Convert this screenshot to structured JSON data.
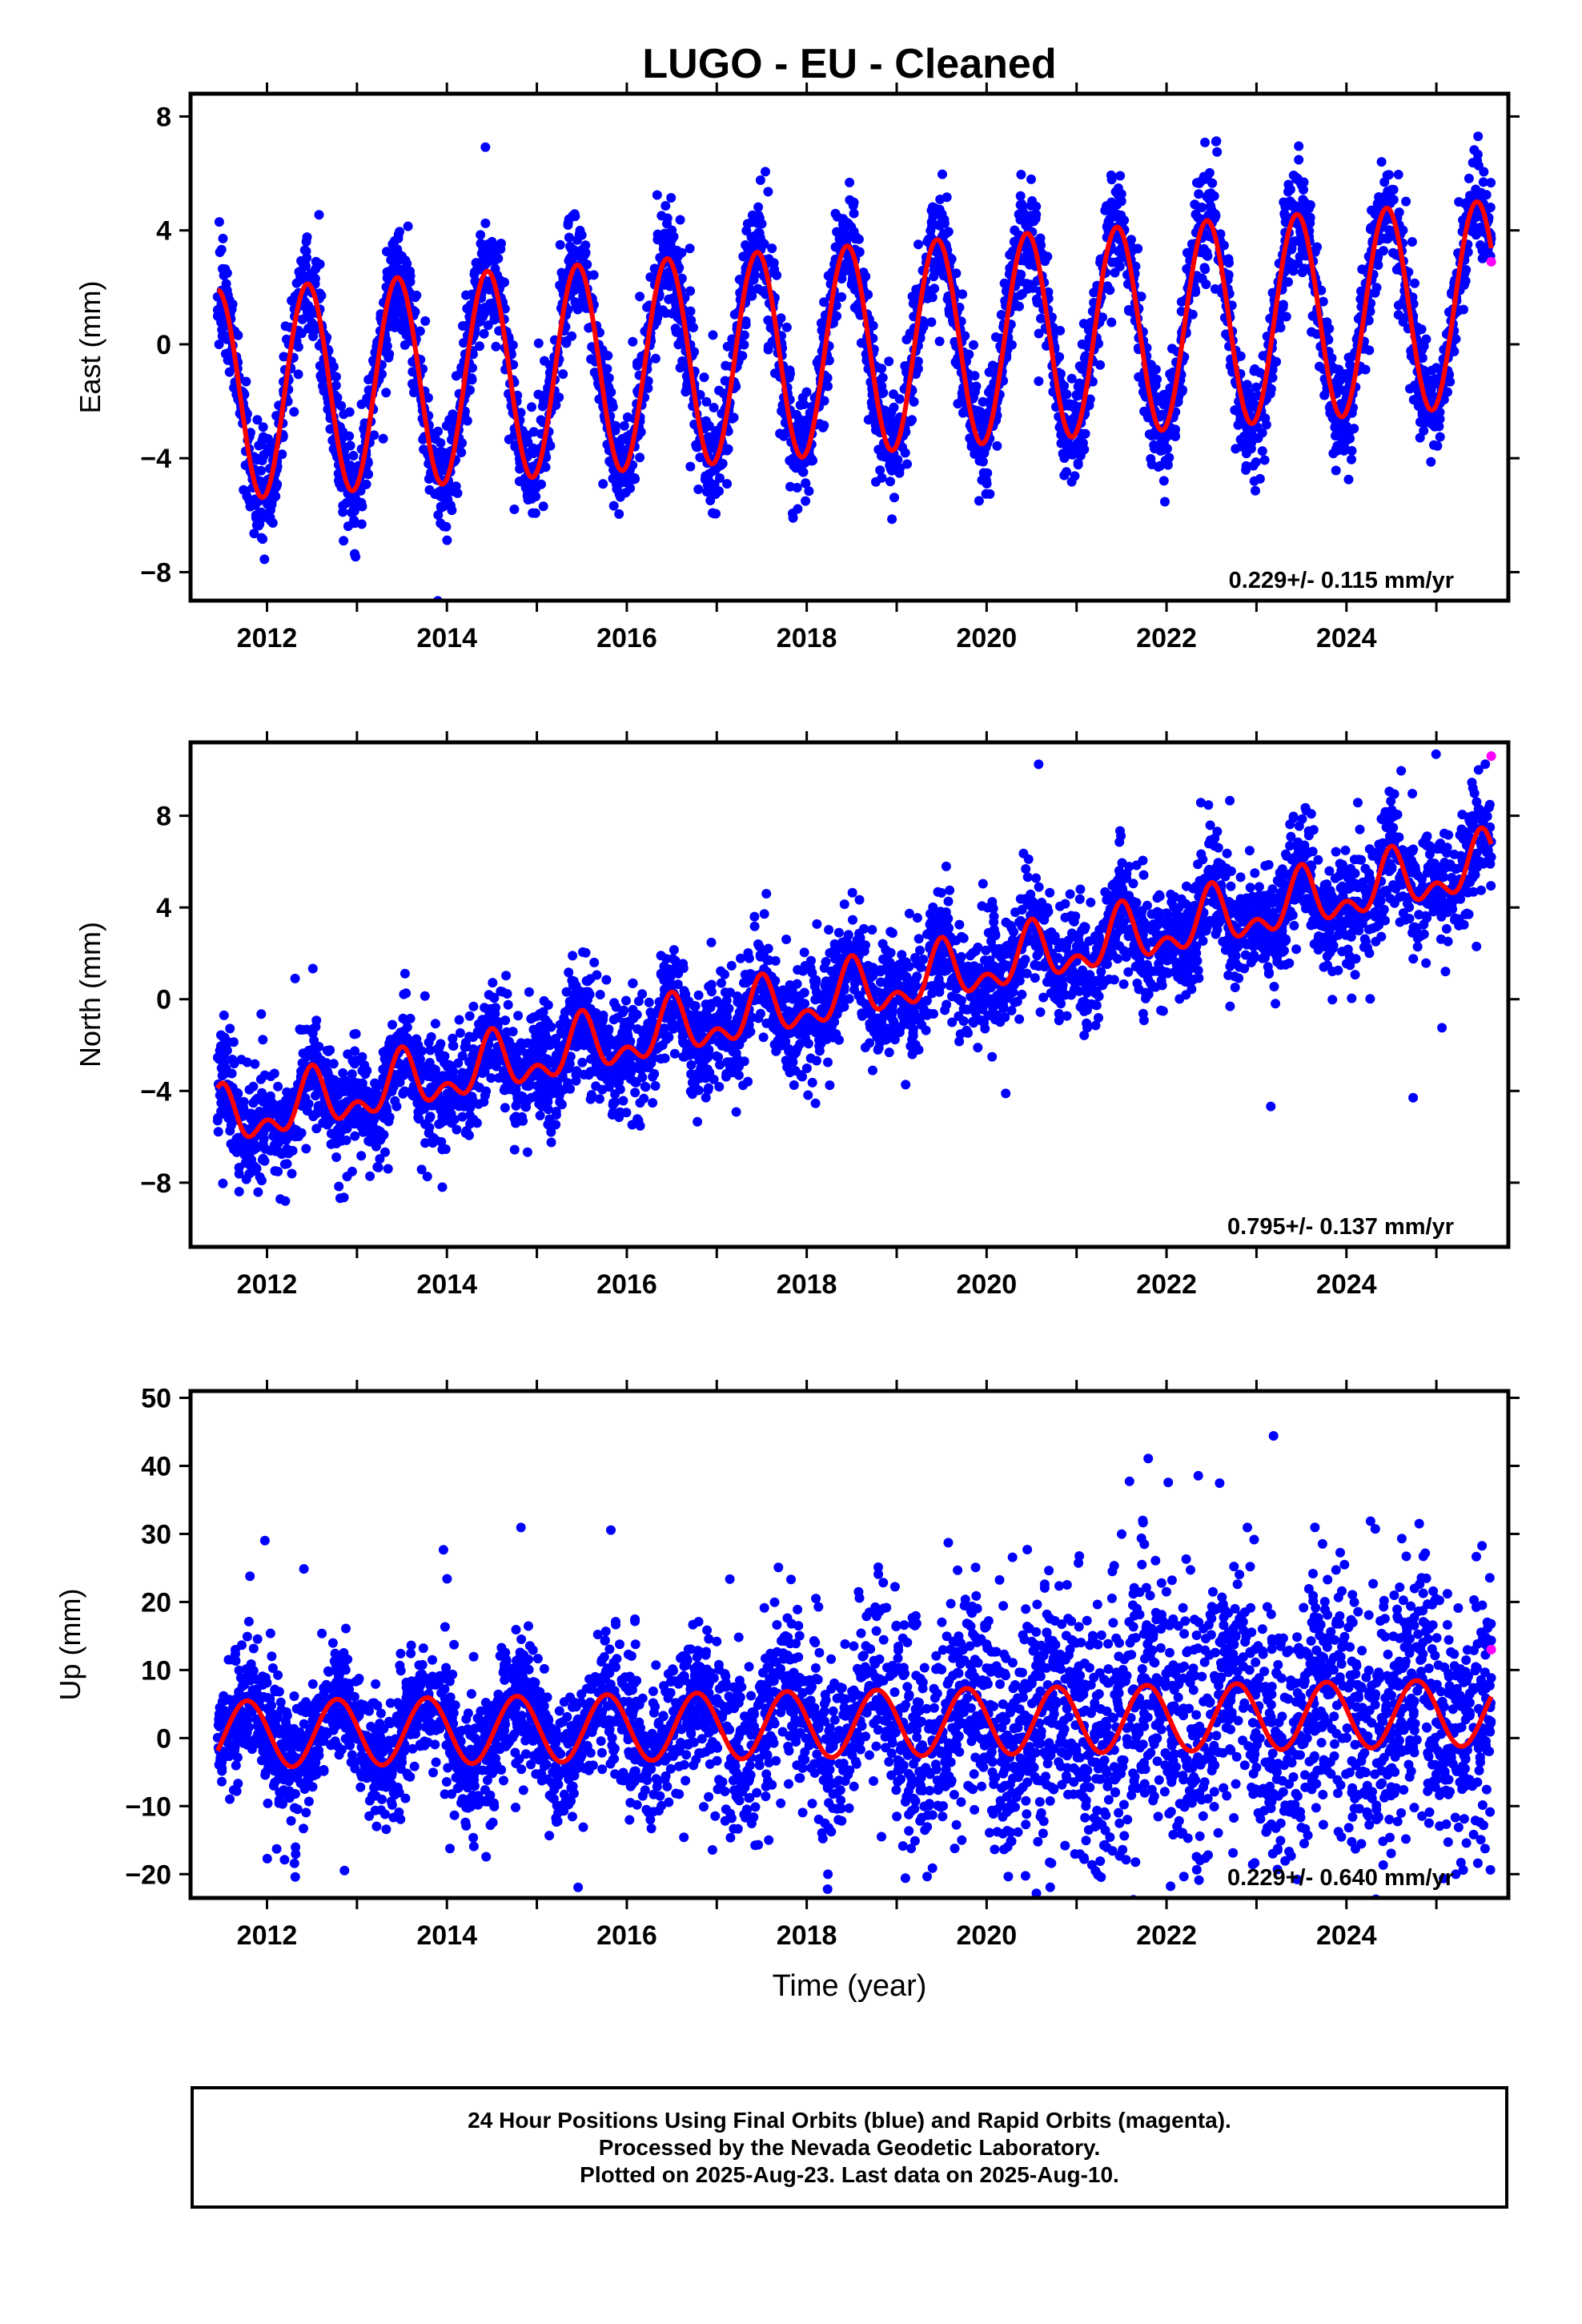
{
  "chart_data": [
    {
      "type": "scatter",
      "title": "LUGO  - EU - Cleaned",
      "xlabel": "",
      "ylabel": "East (mm)",
      "xlim": [
        2011.15,
        2025.8
      ],
      "ylim": [
        -9,
        8.8
      ],
      "xticks": [
        2012,
        2014,
        2016,
        2018,
        2020,
        2022,
        2024
      ],
      "xtick_labels": [
        "2012",
        "2014",
        "2016",
        "2018",
        "2020",
        "2022",
        "2024"
      ],
      "yticks": [
        -8,
        -4,
        0,
        4,
        8
      ],
      "ytick_labels": [
        "−8",
        "−4",
        "0",
        "4",
        "8"
      ],
      "rate_annotation": "0.229+/- 0.115 mm/yr",
      "data_range": [
        2011.45,
        2025.61
      ],
      "model": {
        "type": "trend + annual sinusoid",
        "rate_mm_per_yr": 0.229,
        "offset_mm": -1.8,
        "annual_amplitude_start_mm": 3.7,
        "annual_amplitude_end_mm": 3.6,
        "annual_peak_phase_yr": 0.45
      },
      "scatter": {
        "count": 4300,
        "scatter_sd_mm": 0.9,
        "outlier_fraction": 0.04
      },
      "rapid_points": [
        {
          "x": 2025.61,
          "y": 2.9
        }
      ]
    },
    {
      "type": "scatter",
      "title": "",
      "xlabel": "",
      "ylabel": "North (mm)",
      "xlim": [
        2011.15,
        2025.8
      ],
      "ylim": [
        -10.8,
        11.2
      ],
      "xticks": [
        2012,
        2014,
        2016,
        2018,
        2020,
        2022,
        2024
      ],
      "xtick_labels": [
        "2012",
        "2014",
        "2016",
        "2018",
        "2020",
        "2022",
        "2024"
      ],
      "yticks": [
        -8,
        -4,
        0,
        4,
        8
      ],
      "ytick_labels": [
        "−8",
        "−4",
        "0",
        "4",
        "8"
      ],
      "rate_annotation": "0.795+/- 0.137 mm/yr",
      "data_range": [
        2011.45,
        2025.61
      ],
      "model": {
        "type": "trend + annual + semiannual",
        "rate_mm_per_yr": 0.795,
        "offset_mm": -5.4,
        "annual_amplitude_mm": 1.0,
        "annual_peak_phase_yr": 0.5,
        "semiannual_amplitude_mm": 0.7,
        "semiannual_peak_phase_yr": 0.5
      },
      "scatter": {
        "count": 4300,
        "scatter_sd_mm": 1.15,
        "outlier_fraction": 0.04
      },
      "rapid_points": [
        {
          "x": 2025.61,
          "y": 10.6
        }
      ]
    },
    {
      "type": "scatter",
      "title": "",
      "xlabel": "Time (year)",
      "ylabel": "Up (mm)",
      "xlim": [
        2011.15,
        2025.8
      ],
      "ylim": [
        -23.5,
        51
      ],
      "xticks": [
        2012,
        2014,
        2016,
        2018,
        2020,
        2022,
        2024
      ],
      "xtick_labels": [
        "2012",
        "2014",
        "2016",
        "2018",
        "2020",
        "2022",
        "2024"
      ],
      "yticks": [
        -20,
        -10,
        0,
        10,
        20,
        30,
        40,
        50
      ],
      "ytick_labels": [
        "−20",
        "−10",
        "0",
        "10",
        "20",
        "30",
        "40",
        "50"
      ],
      "rate_annotation": "0.229+/- 0.640 mm/yr",
      "data_range": [
        2011.45,
        2025.61
      ],
      "model": {
        "type": "trend + annual sinusoid",
        "rate_mm_per_yr": 0.229,
        "offset_mm": 0.5,
        "annual_amplitude_mm": 4.9,
        "annual_peak_phase_yr": 0.78
      },
      "scatter": {
        "count": 4300,
        "scatter_sd_early_mm": 4.5,
        "scatter_sd_late_mm": 9.5,
        "outlier_fraction": 0.06
      },
      "rapid_points": [
        {
          "x": 2025.61,
          "y": 13.0
        }
      ]
    }
  ],
  "colors": {
    "final_orbits": "#0000ff",
    "rapid_orbits": "#ff00ff",
    "model_line": "#ff0000",
    "frame": "#000000"
  },
  "caption": {
    "line1": "24 Hour Positions Using Final Orbits (blue) and Rapid Orbits (magenta).",
    "line2": "Processed by the Nevada Geodetic Laboratory.",
    "line3": "Plotted on 2025-Aug-23. Last data on 2025-Aug-10."
  }
}
